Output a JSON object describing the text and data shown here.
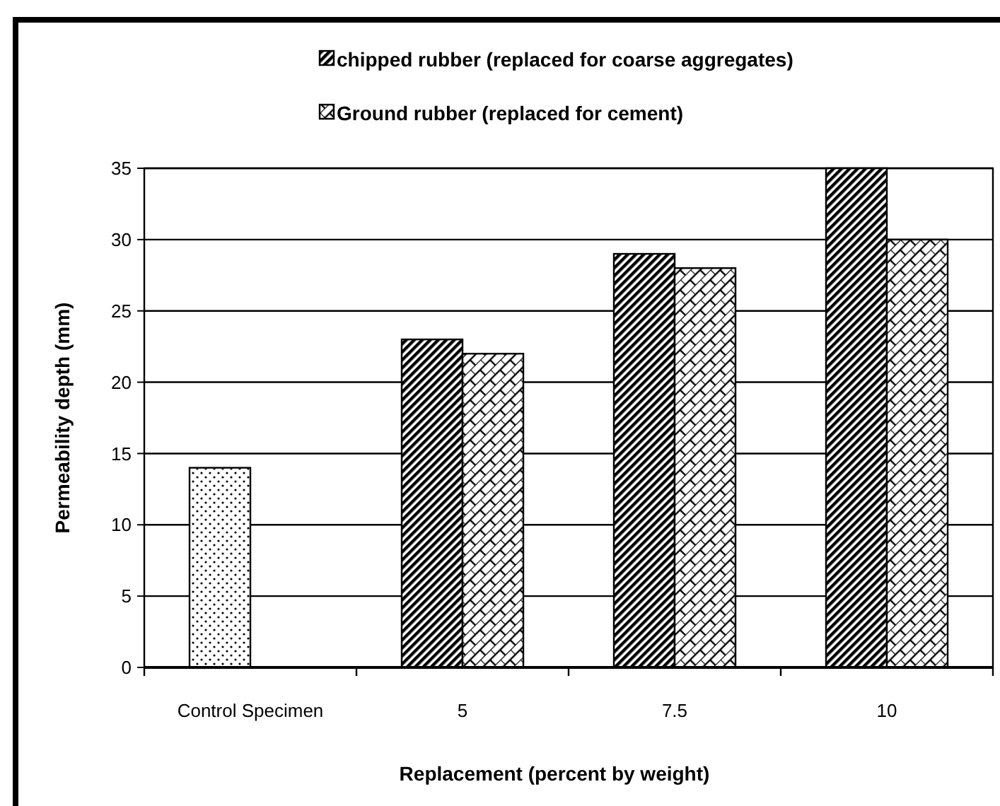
{
  "chart_data": {
    "type": "bar",
    "xlabel": "Replacement (percent by weight)",
    "ylabel": "Permeability depth (mm)",
    "categories": [
      "Control Specimen",
      "5",
      "7.5",
      "10"
    ],
    "series": [
      {
        "color": "#000000",
        "values": [
          14,
          null,
          null,
          null
        ]
      },
      {
        "name": "chipped rubber (replaced for coarse aggregates)",
        "color": "#000000",
        "values": [
          null,
          23,
          29,
          35
        ]
      },
      {
        "name": "Ground rubber (replaced for cement)",
        "color": "#000000",
        "values": [
          null,
          22,
          28,
          30
        ]
      }
    ],
    "ylim": [
      0,
      35
    ],
    "yticks": [
      0,
      5,
      10,
      15,
      20,
      25,
      30,
      35
    ],
    "grid": "y",
    "legend": "top"
  }
}
